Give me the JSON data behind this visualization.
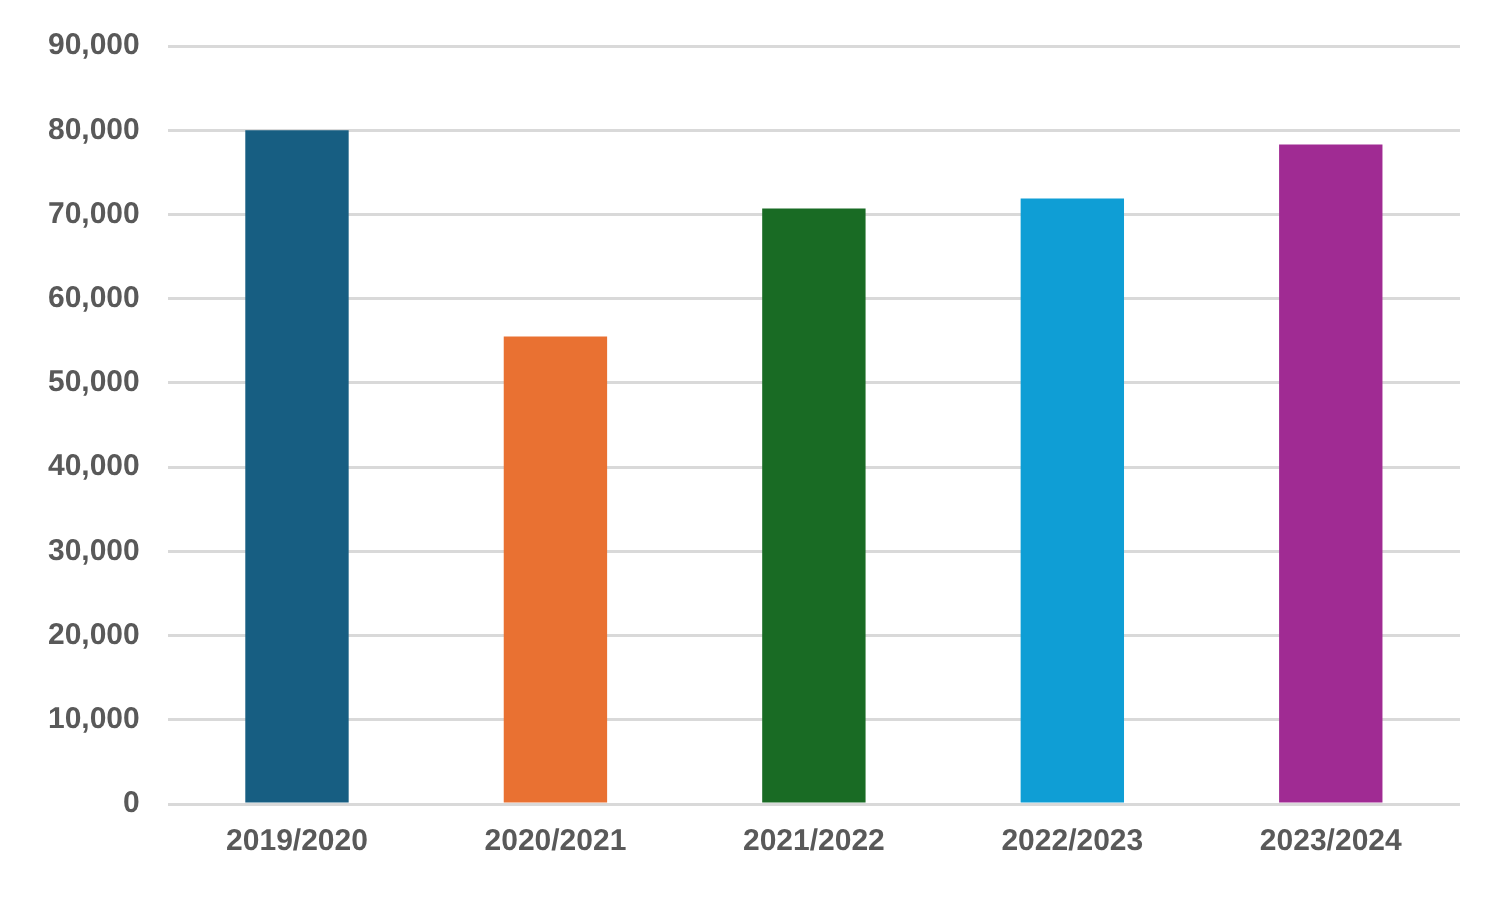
{
  "chart_data": {
    "type": "bar",
    "categories": [
      "2019/2020",
      "2020/2021",
      "2021/2022",
      "2022/2023",
      "2023/2024"
    ],
    "values": [
      80000,
      55500,
      70700,
      71900,
      78300
    ],
    "colors": [
      "#175e82",
      "#e97132",
      "#196b24",
      "#0f9ed5",
      "#a02b93"
    ],
    "ylim": [
      0,
      90000
    ],
    "yticks": [
      0,
      {
        "value": 10000,
        "label": "10,000"
      },
      {
        "value": 20000,
        "label": "20,000"
      },
      {
        "value": 30000,
        "label": "30,000"
      },
      {
        "value": 40000,
        "label": "40,000"
      },
      {
        "value": 50000,
        "label": "50,000"
      },
      {
        "value": 60000,
        "label": "60,000"
      },
      {
        "value": 70000,
        "label": "70,000"
      },
      {
        "value": 80000,
        "label": "80,000"
      },
      {
        "value": 90000,
        "label": "90,000"
      }
    ],
    "grid": "y",
    "legend": false
  }
}
